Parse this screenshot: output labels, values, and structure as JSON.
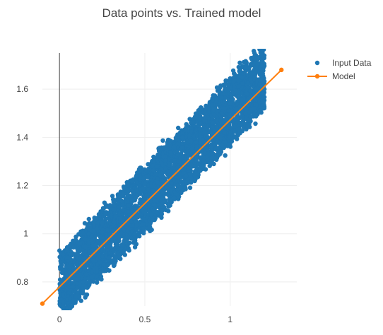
{
  "chart_data": {
    "type": "scatter",
    "title": "Data points vs. Trained model",
    "xlabel": "",
    "ylabel": "",
    "xlim": [
      -0.1,
      1.39
    ],
    "ylim": [
      0.7,
      1.75
    ],
    "grid": true,
    "legend_position": "top-right",
    "x_ticks": [
      {
        "value": 0,
        "label": "0"
      },
      {
        "value": 0.5,
        "label": "0.5"
      },
      {
        "value": 1,
        "label": "1"
      }
    ],
    "y_ticks": [
      {
        "value": 0.8,
        "label": "0.8"
      },
      {
        "value": 1.0,
        "label": "1"
      },
      {
        "value": 1.2,
        "label": "1.2"
      },
      {
        "value": 1.4,
        "label": "1.4"
      },
      {
        "value": 1.6,
        "label": "1.6"
      }
    ],
    "series": [
      {
        "name": "Input Data",
        "mode": "markers",
        "color": "#1f77b4",
        "x": [
          0.0,
          0.02,
          0.04,
          0.05,
          0.06,
          0.08,
          0.1,
          0.12,
          0.14,
          0.15,
          0.17,
          0.19,
          0.2,
          0.22,
          0.24,
          0.25,
          0.27,
          0.29,
          0.3,
          0.32,
          0.34,
          0.35,
          0.37,
          0.39,
          0.4,
          0.42,
          0.44,
          0.45,
          0.47,
          0.49,
          0.5,
          0.52,
          0.54,
          0.55,
          0.57,
          0.59,
          0.6,
          0.62,
          0.64,
          0.65,
          0.67,
          0.69,
          0.7,
          0.72,
          0.74,
          0.75,
          0.77,
          0.79,
          0.8,
          0.82,
          0.84,
          0.85,
          0.87,
          0.89,
          0.9,
          0.92,
          0.94,
          0.95,
          0.97,
          0.99,
          1.0,
          1.02,
          1.04,
          1.05,
          1.07,
          1.09,
          1.1,
          1.12,
          1.14,
          1.15,
          1.17,
          1.19,
          1.2
        ],
        "y": [
          0.93,
          0.85,
          0.8,
          0.9,
          0.95,
          0.78,
          0.85,
          0.96,
          0.8,
          0.9,
          1.0,
          0.82,
          0.92,
          1.02,
          0.88,
          0.95,
          1.08,
          0.9,
          1.0,
          1.1,
          0.92,
          1.02,
          1.12,
          0.97,
          1.06,
          1.18,
          1.0,
          1.1,
          1.2,
          1.04,
          1.14,
          1.24,
          1.08,
          1.18,
          1.28,
          1.12,
          1.22,
          1.32,
          1.16,
          1.26,
          1.36,
          1.2,
          1.3,
          1.4,
          1.24,
          1.34,
          1.44,
          1.28,
          1.38,
          1.48,
          1.32,
          1.42,
          1.52,
          1.36,
          1.46,
          1.56,
          1.4,
          1.5,
          1.6,
          1.44,
          1.54,
          1.63,
          1.48,
          1.57,
          1.65,
          1.5,
          1.58,
          1.64,
          1.52,
          1.6,
          1.64,
          1.55,
          1.6
        ]
      },
      {
        "name": "Model",
        "mode": "lines+markers",
        "color": "#ff7f0e",
        "x": [
          -0.1,
          1.3
        ],
        "y": [
          0.71,
          1.68
        ]
      }
    ]
  }
}
